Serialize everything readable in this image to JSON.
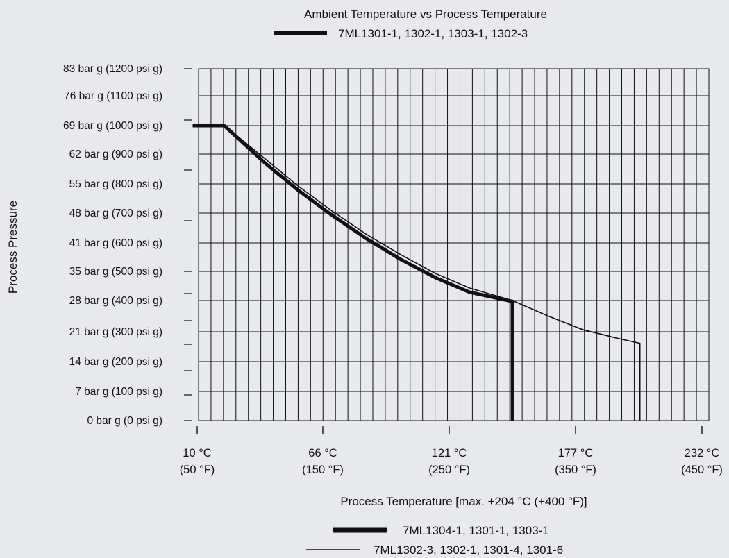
{
  "chart_data": {
    "type": "line",
    "title": "Ambient Temperature vs Process Temperature",
    "xlabel": "Process Temperature [max. +204 °C (+400 °F)]",
    "ylabel": "Process Pressure",
    "x_unit": "°C",
    "y_unit": "bar g",
    "xlim": [
      10,
      232
    ],
    "ylim": [
      0,
      100
    ],
    "x_ticks": [
      {
        "value": 10,
        "label_c": "10 °C",
        "label_f": "(50 °F)"
      },
      {
        "value": 66,
        "label_c": "66 °C",
        "label_f": "(150 °F)"
      },
      {
        "value": 121,
        "label_c": "121 °C",
        "label_f": "(250 °F)"
      },
      {
        "value": 177,
        "label_c": "177 °C",
        "label_f": "(350 °F)"
      },
      {
        "value": 232,
        "label_c": "232 °C",
        "label_f": "(450 °F)"
      }
    ],
    "y_ticks": [
      {
        "value": 0,
        "label": "0 bar g (0 psi g)"
      },
      {
        "value": 7,
        "label": "7 bar g (100 psi g)"
      },
      {
        "value": 14,
        "label": "14 bar g (200 psi g)"
      },
      {
        "value": 21,
        "label": "21 bar g (300 psi g)"
      },
      {
        "value": 28,
        "label": "28 bar g (400 psi g)"
      },
      {
        "value": 35,
        "label": "35 bar g (500 psi g)"
      },
      {
        "value": 41,
        "label": "41 bar g (600 psi g)"
      },
      {
        "value": 48,
        "label": "48 bar g (700 psi g)"
      },
      {
        "value": 55,
        "label": "55 bar g (800 psi g)"
      },
      {
        "value": 62,
        "label": "62 bar g (900 psi g)"
      },
      {
        "value": 69,
        "label": "69 bar g (1000 psi g)"
      },
      {
        "value": 76,
        "label": "76 bar g (1100 psi g)"
      },
      {
        "value": 83,
        "label": "83 bar g (1200 psi g)"
      }
    ],
    "grid": true,
    "legend": [
      {
        "name": "7ML1301-1, 1302-1, 1303-1, 1302-3",
        "style": "thick",
        "placement": "top"
      },
      {
        "name": "7ML1304-1, 1301-1, 1303-1",
        "style": "thick",
        "placement": "bottom"
      },
      {
        "name": "7ML1302-3, 1302-1, 1301-4, 1301-6",
        "style": "thin",
        "placement": "bottom"
      }
    ],
    "series": [
      {
        "style": "thick",
        "points": [
          [
            8,
            69
          ],
          [
            22,
            69
          ],
          [
            30,
            65
          ],
          [
            40,
            60
          ],
          [
            55,
            53.5
          ],
          [
            70,
            47.5
          ],
          [
            85,
            42
          ],
          [
            100,
            37.5
          ],
          [
            115,
            33.5
          ],
          [
            130,
            30
          ],
          [
            149,
            27.8
          ],
          [
            149,
            0
          ]
        ]
      },
      {
        "style": "thin",
        "points": [
          [
            8,
            69
          ],
          [
            22,
            69
          ],
          [
            30,
            65.5
          ],
          [
            40,
            61
          ],
          [
            55,
            54.5
          ],
          [
            70,
            48.5
          ],
          [
            85,
            43
          ],
          [
            100,
            38.5
          ],
          [
            115,
            34.5
          ],
          [
            130,
            31
          ],
          [
            149,
            28
          ],
          [
            165,
            24.5
          ],
          [
            180,
            21.5
          ],
          [
            195,
            19.5
          ],
          [
            205,
            18.3
          ],
          [
            205,
            0
          ]
        ]
      }
    ],
    "colors": {
      "background": "#e8e9ec",
      "ink": "#111111"
    }
  }
}
